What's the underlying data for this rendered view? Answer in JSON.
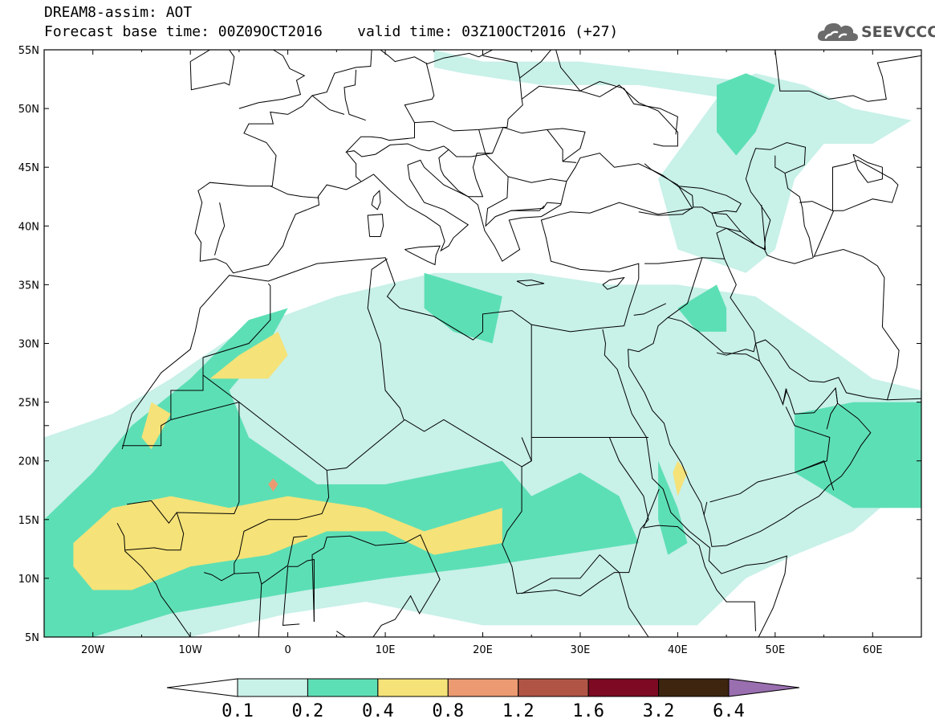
{
  "header": {
    "title_line1": "DREAM8-assim: AOT",
    "title_line2": "Forecast base time: 00Z09OCT2016    valid time: 03Z10OCT2016 (+27)",
    "logo_text": "SEEVCCC",
    "logo_icon": "cloud-icon"
  },
  "map": {
    "lat_labels": [
      "55N",
      "50N",
      "45N",
      "40N",
      "35N",
      "30N",
      "25N",
      "20N",
      "15N",
      "10N",
      "5N"
    ],
    "lon_labels": [
      "20W",
      "10W",
      "0",
      "10E",
      "20E",
      "30E",
      "40E",
      "50E",
      "60E"
    ],
    "extent": {
      "lon_min": -25,
      "lon_max": 65,
      "lat_min": 5,
      "lat_max": 55
    },
    "land_outline_color": "#000000"
  },
  "colorbar": {
    "labels": [
      "0.1",
      "0.2",
      "0.4",
      "0.8",
      "1.2",
      "1.6",
      "3.2",
      "6.4"
    ],
    "colors": [
      "#ffffff",
      "#c8f1e8",
      "#5ddfb5",
      "#f5e278",
      "#eb9a72",
      "#b05545",
      "#7d0a22",
      "#3d2510",
      "#9a6fb0"
    ]
  },
  "chart_data": {
    "type": "heatmap",
    "title": "DREAM8-assim: AOT",
    "variable": "AOT",
    "levels": [
      0.1,
      0.2,
      0.4,
      0.8,
      1.2,
      1.6,
      3.2,
      6.4
    ],
    "level_colors": [
      "#ffffff",
      "#c8f1e8",
      "#5ddfb5",
      "#f5e278",
      "#eb9a72",
      "#b05545",
      "#7d0a22",
      "#3d2510",
      "#9a6fb0"
    ],
    "xlim": [
      -25,
      65
    ],
    "ylim": [
      5,
      55
    ],
    "x_ticks": [
      -20,
      -10,
      0,
      10,
      20,
      30,
      40,
      50,
      60
    ],
    "y_ticks": [
      5,
      10,
      15,
      20,
      25,
      30,
      35,
      40,
      45,
      50,
      55
    ],
    "regions": [
      {
        "level": "0.1-0.2",
        "polygon": [
          [
            -25,
            22
          ],
          [
            -18,
            24
          ],
          [
            -12,
            27
          ],
          [
            -5,
            31
          ],
          [
            5,
            34
          ],
          [
            15,
            36
          ],
          [
            25,
            36
          ],
          [
            33,
            35
          ],
          [
            40,
            35
          ],
          [
            48,
            34
          ],
          [
            55,
            30
          ],
          [
            60,
            27
          ],
          [
            65,
            26
          ],
          [
            65,
            19
          ],
          [
            58,
            14
          ],
          [
            52,
            12
          ],
          [
            47,
            10
          ],
          [
            42,
            6
          ],
          [
            20,
            6
          ],
          [
            8,
            8
          ],
          [
            0,
            7
          ],
          [
            -10,
            5
          ],
          [
            -25,
            5
          ]
        ]
      },
      {
        "level": "0.1-0.2",
        "polygon": [
          [
            38,
            44
          ],
          [
            45,
            52
          ],
          [
            48,
            53
          ],
          [
            53,
            52
          ],
          [
            58,
            50
          ],
          [
            64,
            49
          ],
          [
            60,
            47
          ],
          [
            55,
            47
          ],
          [
            52,
            44
          ],
          [
            50,
            38
          ],
          [
            47,
            36
          ],
          [
            40,
            38
          ]
        ]
      },
      {
        "level": "0.1-0.2",
        "polygon": [
          [
            15,
            55
          ],
          [
            20,
            54
          ],
          [
            30,
            54
          ],
          [
            40,
            53
          ],
          [
            50,
            52
          ],
          [
            55,
            51
          ],
          [
            52,
            49
          ],
          [
            44,
            51
          ],
          [
            36,
            52
          ],
          [
            26,
            52
          ],
          [
            18,
            53
          ],
          [
            15,
            53.5
          ]
        ]
      },
      {
        "level": "0.2-0.4",
        "polygon": [
          [
            -25,
            15
          ],
          [
            -20,
            19
          ],
          [
            -16,
            23
          ],
          [
            -10,
            27
          ],
          [
            -4,
            32
          ],
          [
            0,
            33
          ],
          [
            -2,
            30
          ],
          [
            -6,
            26
          ],
          [
            -4,
            22
          ],
          [
            3,
            18
          ],
          [
            10,
            18
          ],
          [
            16,
            19
          ],
          [
            22,
            20
          ],
          [
            25,
            17
          ],
          [
            30,
            19
          ],
          [
            34,
            17
          ],
          [
            36,
            13
          ],
          [
            28,
            12
          ],
          [
            20,
            11
          ],
          [
            10,
            10
          ],
          [
            2,
            9
          ],
          [
            -5,
            8
          ],
          [
            -12,
            7
          ],
          [
            -20,
            5
          ],
          [
            -25,
            5
          ]
        ]
      },
      {
        "level": "0.2-0.4",
        "polygon": [
          [
            38,
            20
          ],
          [
            40,
            16
          ],
          [
            41,
            13
          ],
          [
            39,
            12
          ],
          [
            38,
            15
          ]
        ]
      },
      {
        "level": "0.2-0.4",
        "polygon": [
          [
            52,
            24
          ],
          [
            58,
            25
          ],
          [
            65,
            25
          ],
          [
            65,
            16
          ],
          [
            58,
            16
          ],
          [
            52,
            19
          ]
        ]
      },
      {
        "level": "0.2-0.4",
        "polygon": [
          [
            44,
            52
          ],
          [
            47,
            53
          ],
          [
            50,
            52
          ],
          [
            48,
            48
          ],
          [
            46,
            46
          ],
          [
            44,
            48
          ]
        ]
      },
      {
        "level": "0.2-0.4",
        "polygon": [
          [
            40,
            33
          ],
          [
            44,
            35
          ],
          [
            45,
            33
          ],
          [
            45,
            31
          ],
          [
            42,
            31
          ]
        ]
      },
      {
        "level": "0.2-0.4",
        "polygon": [
          [
            14,
            36
          ],
          [
            18,
            35
          ],
          [
            22,
            34
          ],
          [
            21,
            30
          ],
          [
            17,
            31
          ],
          [
            14,
            33
          ]
        ]
      },
      {
        "level": "0.4-0.8",
        "polygon": [
          [
            -22,
            13
          ],
          [
            -18,
            16
          ],
          [
            -12,
            17
          ],
          [
            -6,
            16
          ],
          [
            0,
            17
          ],
          [
            8,
            16
          ],
          [
            14,
            14
          ],
          [
            22,
            16
          ],
          [
            22,
            13
          ],
          [
            15,
            12
          ],
          [
            10,
            14
          ],
          [
            4,
            14
          ],
          [
            -2,
            12
          ],
          [
            -10,
            11
          ],
          [
            -16,
            9
          ],
          [
            -20,
            9
          ],
          [
            -22,
            11
          ]
        ]
      },
      {
        "level": "0.4-0.8",
        "polygon": [
          [
            -8,
            27
          ],
          [
            -5,
            29
          ],
          [
            -1,
            31
          ],
          [
            0,
            29
          ],
          [
            -2,
            27
          ],
          [
            -5,
            27
          ]
        ]
      },
      {
        "level": "0.4-0.8",
        "polygon": [
          [
            -15,
            22
          ],
          [
            -14,
            25
          ],
          [
            -12,
            24
          ],
          [
            -14,
            21
          ]
        ]
      },
      {
        "level": "0.4-0.8",
        "polygon": [
          [
            40,
            20
          ],
          [
            41,
            19
          ],
          [
            40,
            17
          ],
          [
            39.5,
            19
          ]
        ]
      },
      {
        "level": "0.8-1.2",
        "polygon": [
          [
            -2,
            18
          ],
          [
            -1.5,
            18.5
          ],
          [
            -1,
            18
          ],
          [
            -1.5,
            17.4
          ]
        ]
      }
    ]
  }
}
